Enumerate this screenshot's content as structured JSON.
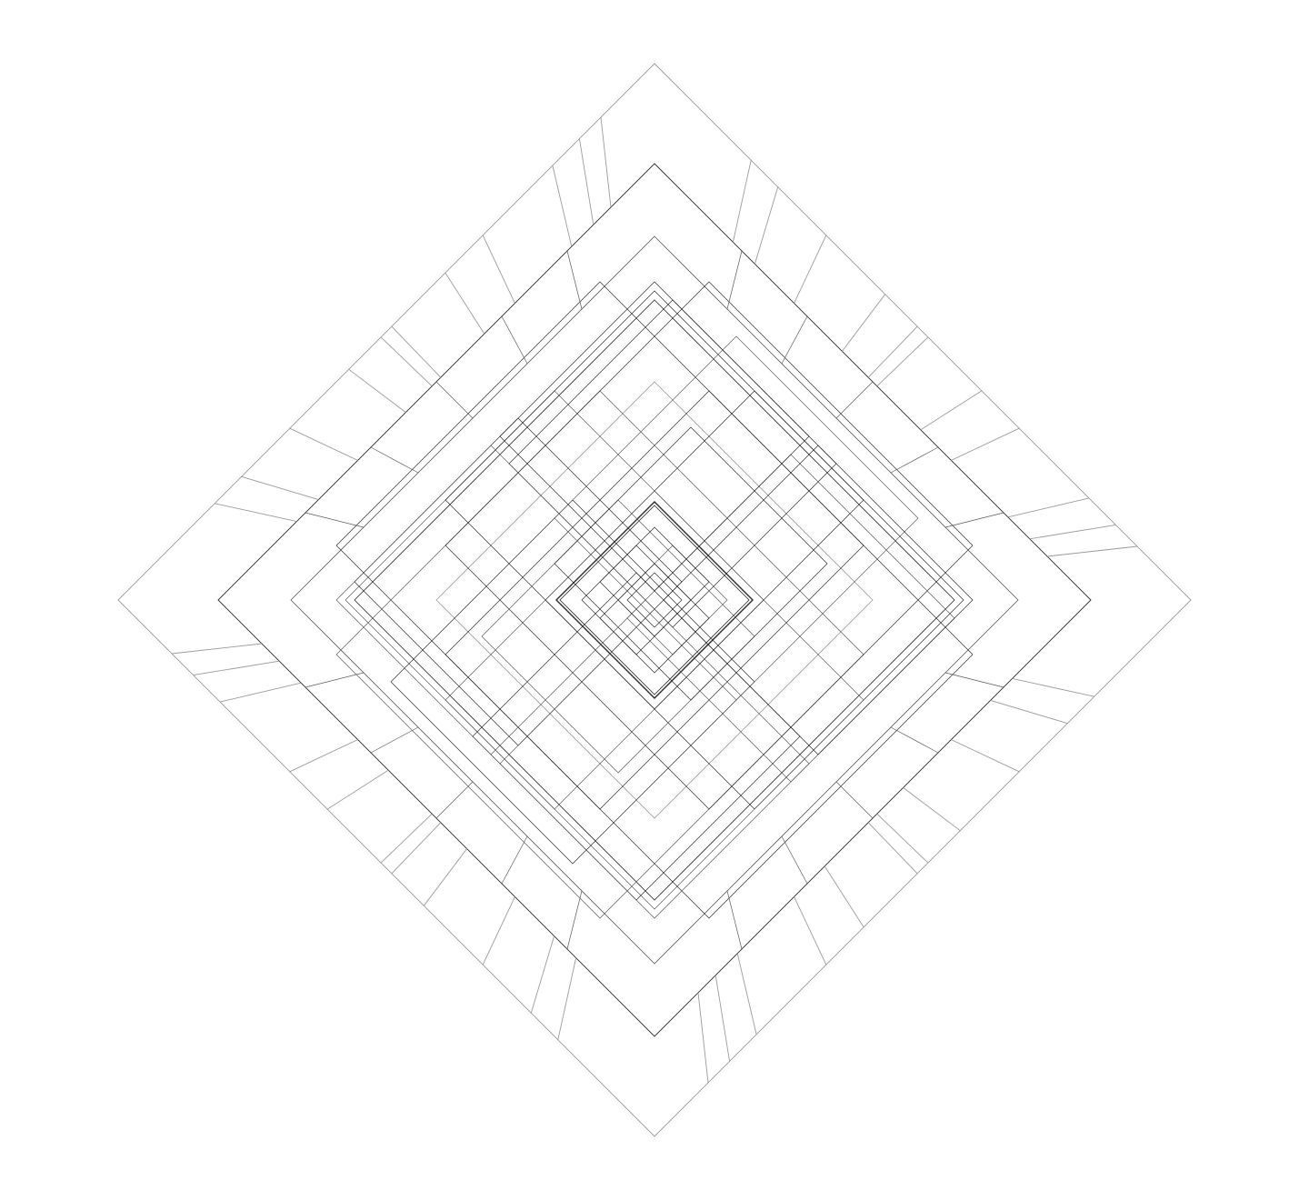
{
  "artwork": {
    "background_color": "#ffffff",
    "line_colors": {
      "dark": "#2a2a2a",
      "mid": "#5a5a5a",
      "light": "#9a9a9a"
    },
    "shape": "nested rotated squares (diamonds) with hatched bands",
    "text": []
  }
}
